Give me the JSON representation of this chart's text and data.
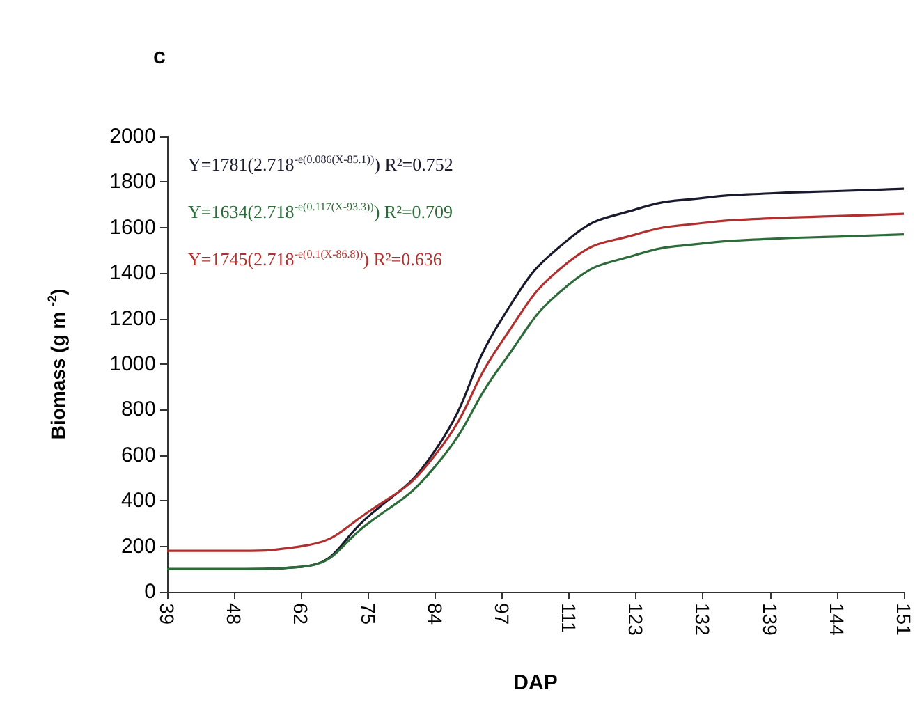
{
  "chart_data": {
    "type": "line",
    "title": "c",
    "xlabel": "DAP",
    "ylabel": "Biomass (g m $^{-2}$)",
    "categories": [
      "39",
      "48",
      "62",
      "75",
      "84",
      "97",
      "111",
      "123",
      "132",
      "139",
      "144",
      "151"
    ],
    "series": [
      {
        "color": "#1a1a2e",
        "values": [
          100,
          100,
          110,
          330,
          620,
          1200,
          1550,
          1680,
          1730,
          1750,
          1760,
          1770
        ]
      },
      {
        "color": "#2e6b3a",
        "values": [
          100,
          100,
          110,
          300,
          550,
          1000,
          1350,
          1480,
          1530,
          1550,
          1560,
          1570
        ]
      },
      {
        "color": "#b03030",
        "values": [
          180,
          180,
          200,
          350,
          600,
          1100,
          1450,
          1570,
          1620,
          1640,
          1650,
          1660
        ]
      }
    ],
    "annotations": [
      "Y=1781(2.718$^{-e(0.086(X-85.1))}$) R²=0.752",
      "Y=1634(2.718$^{-e(0.117(X-93.3))}$) R²=0.709",
      "Y=1745(2.718$^{-e(0.1(X-86.8))}$) R²=0.636"
    ],
    "ylim": [
      0,
      2000
    ],
    "yticks": [
      0,
      200,
      400,
      600,
      800,
      1000,
      1200,
      1400,
      1600,
      1800,
      2000
    ],
    "grid": false,
    "marker": "none",
    "line_style": "solid"
  }
}
